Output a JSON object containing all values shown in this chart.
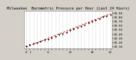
{
  "title": "Milwaukee  Barometric Pressure per Hour (Last 24 Hours)",
  "hours": [
    0,
    1,
    2,
    3,
    4,
    5,
    6,
    7,
    8,
    9,
    10,
    11,
    12,
    13,
    14,
    15,
    16,
    17,
    18,
    19,
    20,
    21,
    22,
    23
  ],
  "pressure": [
    29.1,
    29.13,
    29.16,
    29.19,
    29.22,
    29.24,
    29.27,
    29.3,
    29.33,
    29.37,
    29.4,
    29.43,
    29.47,
    29.5,
    29.54,
    29.57,
    29.61,
    29.65,
    29.68,
    29.72,
    29.75,
    29.79,
    29.82,
    29.85
  ],
  "trend": [
    29.08,
    29.12,
    29.15,
    29.19,
    29.22,
    29.26,
    29.29,
    29.33,
    29.36,
    29.4,
    29.43,
    29.46,
    29.5,
    29.53,
    29.57,
    29.6,
    29.64,
    29.67,
    29.71,
    29.74,
    29.77,
    29.81,
    29.84,
    29.88
  ],
  "data_color": "#000000",
  "trend_color": "#dd0000",
  "bg_color": "#d4d0c8",
  "plot_bg": "#ffffff",
  "grid_color": "#888888",
  "title_fontsize": 4.0,
  "tick_fontsize": 3.2,
  "ylim_min": 29.05,
  "ylim_max": 29.95,
  "yticks": [
    29.1,
    29.2,
    29.3,
    29.4,
    29.5,
    29.6,
    29.7,
    29.8,
    29.9
  ],
  "ytick_labels": [
    "29.10",
    "29.20",
    "29.30",
    "29.40",
    "29.50",
    "29.60",
    "29.70",
    "29.80",
    "29.90"
  ],
  "xlim_min": -0.5,
  "xlim_max": 23.5,
  "xticks": [
    0,
    1,
    2,
    3,
    4,
    5,
    6,
    7,
    8,
    9,
    10,
    11,
    12,
    13,
    14,
    15,
    16,
    17,
    18,
    19,
    20,
    21,
    22,
    23
  ],
  "xtick_labels": [
    "0",
    "1",
    "",
    "",
    "",
    "",
    "6",
    "",
    "",
    "",
    "",
    "",
    "12",
    "",
    "",
    "",
    "",
    "",
    "18",
    "",
    "",
    "",
    "",
    "23"
  ]
}
